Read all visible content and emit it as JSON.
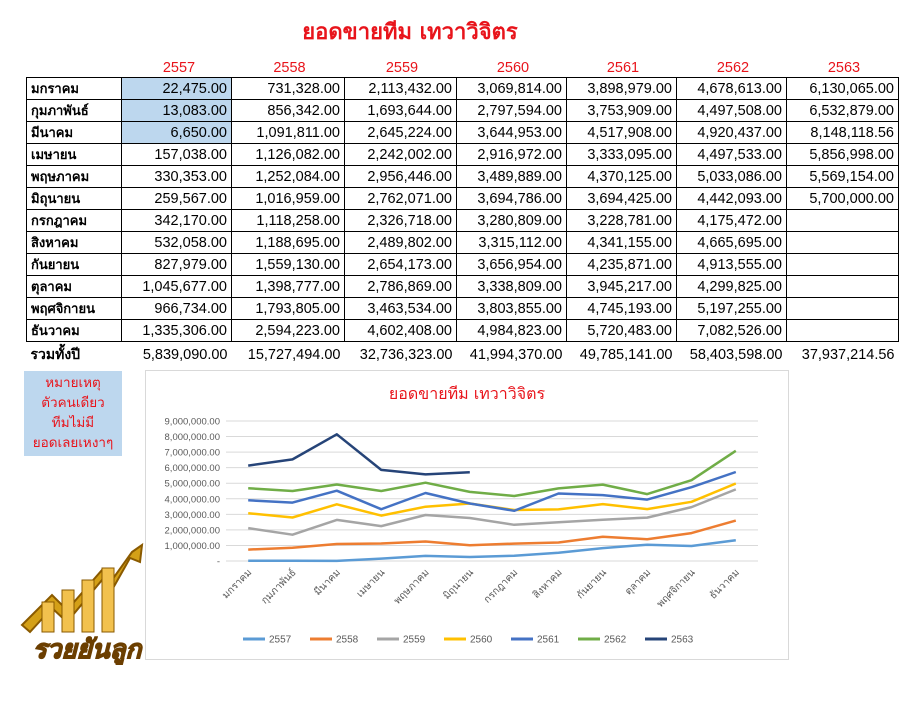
{
  "title": "ยอดขายทีม เทวาวิจิตร",
  "years": [
    "2557",
    "2558",
    "2559",
    "2560",
    "2561",
    "2562",
    "2563"
  ],
  "months": [
    "มกราคม",
    "กุมภาพันธ์",
    "มีนาคม",
    "เมษายน",
    "พฤษภาคม",
    "มิถุนายน",
    "กรกฎาคม",
    "สิงหาคม",
    "กันยายน",
    "ตุลาคม",
    "พฤศจิกายน",
    "ธันวาคม"
  ],
  "rows": [
    [
      "22,475.00",
      "731,328.00",
      "2,113,432.00",
      "3,069,814.00",
      "3,898,979.00",
      "4,678,613.00",
      "6,130,065.00"
    ],
    [
      "13,083.00",
      "856,342.00",
      "1,693,644.00",
      "2,797,594.00",
      "3,753,909.00",
      "4,497,508.00",
      "6,532,879.00"
    ],
    [
      "6,650.00",
      "1,091,811.00",
      "2,645,224.00",
      "3,644,953.00",
      "4,517,908.00",
      "4,920,437.00",
      "8,148,118.56"
    ],
    [
      "157,038.00",
      "1,126,082.00",
      "2,242,002.00",
      "2,916,972.00",
      "3,333,095.00",
      "4,497,533.00",
      "5,856,998.00"
    ],
    [
      "330,353.00",
      "1,252,084.00",
      "2,956,446.00",
      "3,489,889.00",
      "4,370,125.00",
      "5,033,086.00",
      "5,569,154.00"
    ],
    [
      "259,567.00",
      "1,016,959.00",
      "2,762,071.00",
      "3,694,786.00",
      "3,694,425.00",
      "4,442,093.00",
      "5,700,000.00"
    ],
    [
      "342,170.00",
      "1,118,258.00",
      "2,326,718.00",
      "3,280,809.00",
      "3,228,781.00",
      "4,175,472.00",
      ""
    ],
    [
      "532,058.00",
      "1,188,695.00",
      "2,489,802.00",
      "3,315,112.00",
      "4,341,155.00",
      "4,665,695.00",
      ""
    ],
    [
      "827,979.00",
      "1,559,130.00",
      "2,654,173.00",
      "3,656,954.00",
      "4,235,871.00",
      "4,913,555.00",
      ""
    ],
    [
      "1,045,677.00",
      "1,398,777.00",
      "2,786,869.00",
      "3,338,809.00",
      "3,945,217.00",
      "4,299,825.00",
      ""
    ],
    [
      "966,734.00",
      "1,793,805.00",
      "3,463,534.00",
      "3,803,855.00",
      "4,745,193.00",
      "5,197,255.00",
      ""
    ],
    [
      "1,335,306.00",
      "2,594,223.00",
      "4,602,408.00",
      "4,984,823.00",
      "5,720,483.00",
      "7,082,526.00",
      ""
    ]
  ],
  "total_label": "รวมทั้งปี",
  "totals": [
    "5,839,090.00",
    "15,727,494.00",
    "32,736,323.00",
    "41,994,370.00",
    "49,785,141.00",
    "58,403,598.00",
    "37,937,214.56"
  ],
  "note_lines": [
    "หมายเหตุ",
    "ตัวคนเดียว",
    "ทีมไม่มี",
    "ยอดเลยเหงาๆ"
  ],
  "logo_text": "รวยยันลูก",
  "chart_data": {
    "type": "line",
    "title": "ยอดขายทีม เทวาวิจิตร",
    "categories": [
      "มกราคม",
      "กุมภาพันธ์",
      "มีนาคม",
      "เมษายน",
      "พฤษภาคม",
      "มิถุนายน",
      "กรกฎาคม",
      "สิงหาคม",
      "กันยายน",
      "ตุลาคม",
      "พฤศจิกายน",
      "ธันวาคม"
    ],
    "ylim": [
      0,
      9000000
    ],
    "yticks": [
      "-",
      "1,000,000.00",
      "2,000,000.00",
      "3,000,000.00",
      "4,000,000.00",
      "5,000,000.00",
      "6,000,000.00",
      "7,000,000.00",
      "8,000,000.00",
      "9,000,000.00"
    ],
    "grid": true,
    "legend": "bottom",
    "series": [
      {
        "name": "2557",
        "color": "#5b9bd5",
        "values": [
          22475,
          13083,
          6650,
          157038,
          330353,
          259567,
          342170,
          532058,
          827979,
          1045677,
          966734,
          1335306
        ]
      },
      {
        "name": "2558",
        "color": "#ed7d31",
        "values": [
          731328,
          856342,
          1091811,
          1126082,
          1252084,
          1016959,
          1118258,
          1188695,
          1559130,
          1398777,
          1793805,
          2594223
        ]
      },
      {
        "name": "2559",
        "color": "#a5a5a5",
        "values": [
          2113432,
          1693644,
          2645224,
          2242002,
          2956446,
          2762071,
          2326718,
          2489802,
          2654173,
          2786869,
          3463534,
          4602408
        ]
      },
      {
        "name": "2560",
        "color": "#ffc000",
        "values": [
          3069814,
          2797594,
          3644953,
          2916972,
          3489889,
          3694786,
          3280809,
          3315112,
          3656954,
          3338809,
          3803855,
          4984823
        ]
      },
      {
        "name": "2561",
        "color": "#4472c4",
        "values": [
          3898979,
          3753909,
          4517908,
          3333095,
          4370125,
          3694425,
          3228781,
          4341155,
          4235871,
          3945217,
          4745193,
          5720483
        ]
      },
      {
        "name": "2562",
        "color": "#70ad47",
        "values": [
          4678613,
          4497508,
          4920437,
          4497533,
          5033086,
          4442093,
          4175472,
          4665695,
          4913555,
          4299825,
          5197255,
          7082526
        ]
      },
      {
        "name": "2563",
        "color": "#264478",
        "values": [
          6130065,
          6532879,
          8148118.56,
          5856998,
          5569154,
          5700000,
          null,
          null,
          null,
          null,
          null,
          null
        ]
      }
    ]
  }
}
